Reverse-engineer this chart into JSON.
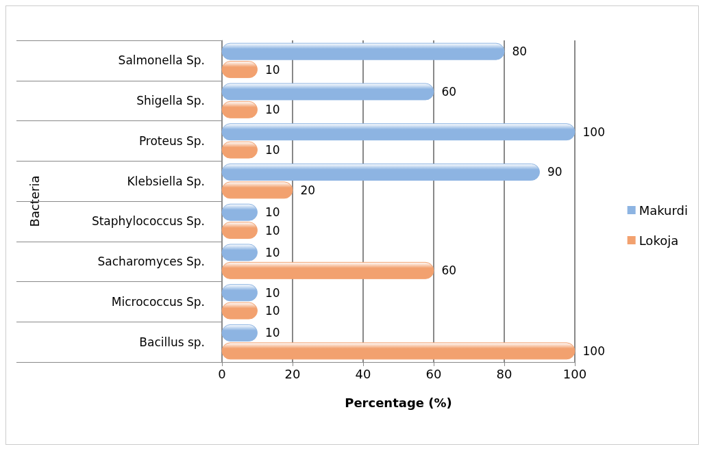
{
  "chart_data": {
    "type": "bar",
    "orientation": "horizontal",
    "xlabel": "Percentage (%)",
    "ylabel": "Bacteria",
    "categories": [
      "Salmonella Sp.",
      "Shigella Sp.",
      "Proteus Sp.",
      "Klebsiella Sp.",
      "Staphylococcus Sp.",
      "Sacharomyces Sp.",
      "Micrococcus Sp.",
      "Bacillus sp."
    ],
    "series": [
      {
        "name": "Makurdi",
        "color": "#8db4e2",
        "values": [
          80,
          60,
          100,
          90,
          10,
          10,
          10,
          10
        ]
      },
      {
        "name": "Lokoja",
        "color": "#f2a16f",
        "values": [
          10,
          10,
          10,
          20,
          10,
          60,
          10,
          100
        ]
      }
    ],
    "xlim": [
      0,
      100
    ],
    "xticks": [
      0,
      20,
      40,
      60,
      80,
      100
    ],
    "grid": "x",
    "legend": "right",
    "data_labels": true
  }
}
